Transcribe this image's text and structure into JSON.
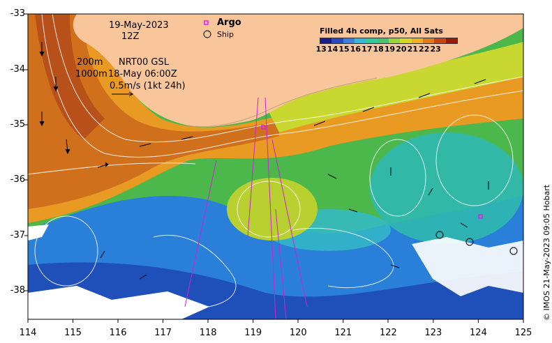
{
  "date_line": "19-May-2023",
  "hour_line": "12Z",
  "depth_200": "200m",
  "depth_1000": "1000m",
  "product": "NRT00 GSL",
  "product_time": "18-May 06:00Z",
  "scale_label": "0.5m/s (1kt 24h)",
  "legend": {
    "argo": "Argo",
    "ship": "Ship"
  },
  "colorbar": {
    "title": "Filled 4h comp, p50, All Sats",
    "ticks": [
      "13",
      "14",
      "15",
      "16",
      "17",
      "18",
      "19",
      "20",
      "21",
      "22",
      "23"
    ],
    "colors": [
      "#1b1b8c",
      "#2a47c4",
      "#3b7fe0",
      "#34b8d8",
      "#2fc9a0",
      "#46c46a",
      "#9bd33a",
      "#d8d820",
      "#eeb020",
      "#e07a1a",
      "#c84410",
      "#9a1a0a"
    ]
  },
  "axes": {
    "x_ticks": [
      "114",
      "115",
      "116",
      "117",
      "118",
      "119",
      "120",
      "121",
      "122",
      "123",
      "124",
      "125"
    ],
    "y_ticks": [
      "-33",
      "-34",
      "-35",
      "-36",
      "-37",
      "-38"
    ]
  },
  "credit": "© IMOS 21-May-2023 09:05 Hobart",
  "colors": {
    "land": "#f9c69c",
    "cloud": "#ffffff",
    "argo": "#e020e0"
  }
}
